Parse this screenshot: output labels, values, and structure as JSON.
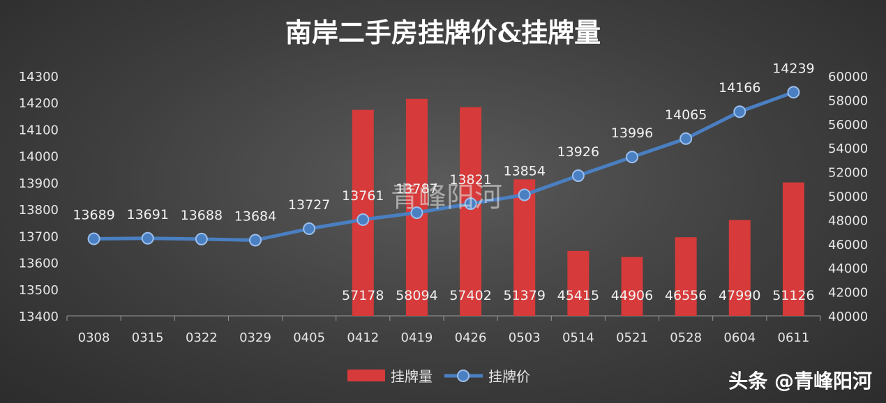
{
  "chart_data": {
    "type": "bar+line",
    "title": "南岸二手房挂牌价&挂牌量",
    "categories": [
      "0308",
      "0315",
      "0322",
      "0329",
      "0405",
      "0412",
      "0419",
      "0426",
      "0503",
      "0514",
      "0521",
      "0528",
      "0604",
      "0611"
    ],
    "series": [
      {
        "name": "挂牌量",
        "type": "bar",
        "axis": "right",
        "color": "#d63a3a",
        "values": [
          null,
          null,
          null,
          null,
          null,
          57178,
          58094,
          57402,
          51379,
          45415,
          44906,
          46556,
          47990,
          51126
        ],
        "labels": [
          "",
          "",
          "",
          "",
          "",
          "57178",
          "58094",
          "57402",
          "51379",
          "45415",
          "44906",
          "46556",
          "47990",
          "51126"
        ]
      },
      {
        "name": "挂牌价",
        "type": "line",
        "axis": "left",
        "color": "#4a7fc1",
        "values": [
          13689,
          13691,
          13688,
          13684,
          13727,
          13761,
          13787,
          13821,
          13854,
          13926,
          13996,
          14065,
          14166,
          14239
        ],
        "labels": [
          "13689",
          "13691",
          "13688",
          "13684",
          "13727",
          "13761",
          "13787",
          "13821",
          "13854",
          "13926",
          "13996",
          "14065",
          "14166",
          "14239"
        ]
      }
    ],
    "y_left": {
      "min": 13400,
      "max": 14300,
      "ticks": [
        "13400",
        "13500",
        "13600",
        "13700",
        "13800",
        "13900",
        "14000",
        "14100",
        "14200",
        "14300"
      ]
    },
    "y_right": {
      "min": 40000,
      "max": 60000,
      "ticks": [
        "40000",
        "42000",
        "44000",
        "46000",
        "48000",
        "50000",
        "52000",
        "54000",
        "56000",
        "58000",
        "60000"
      ]
    },
    "grid": false,
    "legend_position": "bottom",
    "legend": [
      {
        "label": "挂牌量",
        "kind": "bar"
      },
      {
        "label": "挂牌价",
        "kind": "line"
      }
    ]
  },
  "watermark": "青峰阳河",
  "credit": "头条 @青峰阳河"
}
